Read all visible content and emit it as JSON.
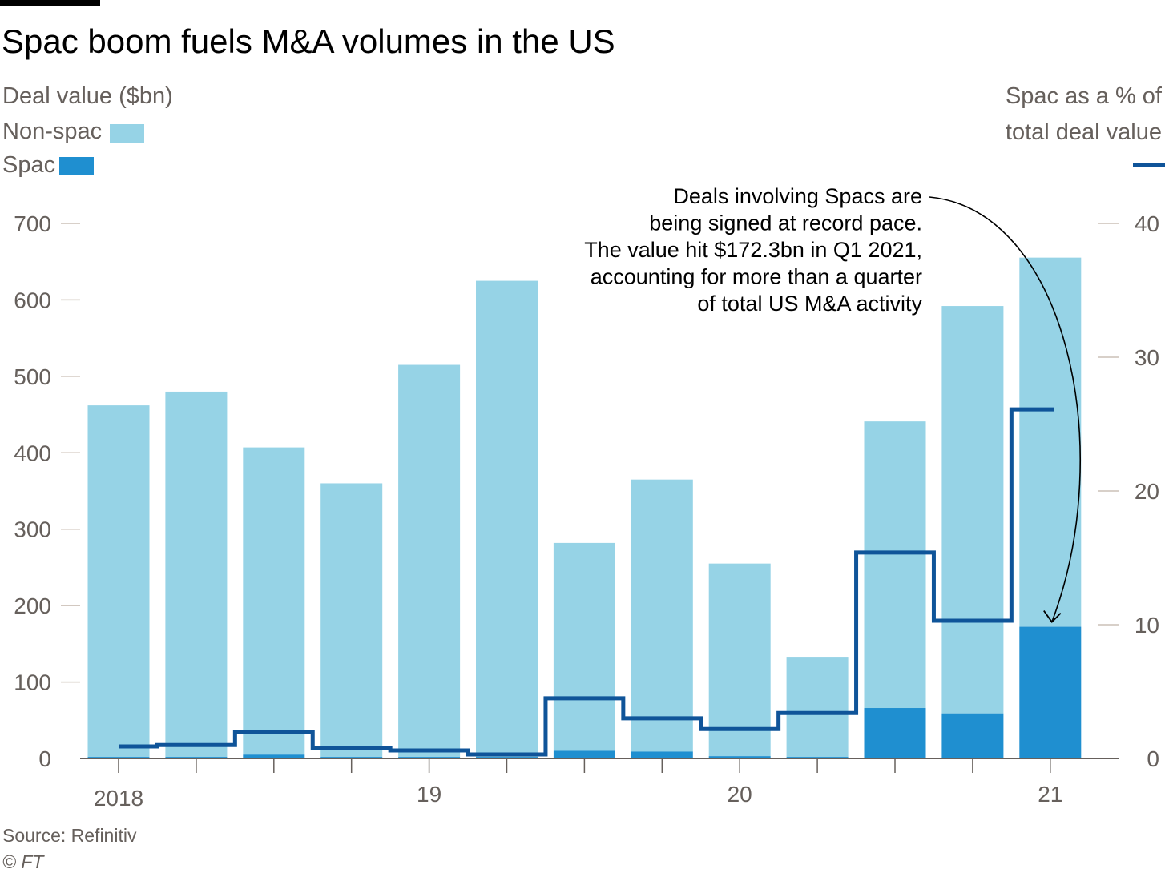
{
  "title": "Spac boom fuels M&A volumes in the US",
  "left_axis_title": "Deal value ($bn)",
  "right_axis_title_line1": "Spac as a % of",
  "right_axis_title_line2": "total deal value",
  "legend": {
    "non_spac": "Non-spac",
    "spac": "Spac",
    "non_spac_color": "#96d3e6",
    "spac_color": "#1f8fd0",
    "line_color": "#0f5499"
  },
  "annotation": [
    "Deals involving Spacs are",
    "being signed at record pace.",
    "The value hit $172.3bn in Q1 2021,",
    "accounting for more than a quarter",
    "of total US M&A activity"
  ],
  "source": "Source: Refinitiv",
  "copyright": "© FT",
  "chart_data": {
    "type": "bar",
    "stacked": true,
    "categories": [
      "Q1 2018",
      "Q2 2018",
      "Q3 2018",
      "Q4 2018",
      "Q1 2019",
      "Q2 2019",
      "Q3 2019",
      "Q4 2019",
      "Q1 2020",
      "Q2 2020",
      "Q3 2020",
      "Q4 2020",
      "Q1 2021"
    ],
    "x_tick_labels": [
      {
        "index": 0,
        "label": "2018"
      },
      {
        "index": 4,
        "label": "19"
      },
      {
        "index": 8,
        "label": "20"
      },
      {
        "index": 12,
        "label": "21"
      }
    ],
    "series": [
      {
        "name": "Non-spac",
        "axis": "left",
        "values": [
          460,
          478,
          402,
          358,
          513,
          623,
          272,
          356,
          252,
          131,
          375,
          533,
          483
        ]
      },
      {
        "name": "Spac",
        "axis": "left",
        "values": [
          2,
          2,
          5,
          2,
          2,
          2,
          10,
          9,
          3,
          2,
          66,
          59,
          172.3
        ]
      },
      {
        "name": "Spac as a % of total deal value",
        "axis": "right",
        "type": "step-line",
        "values": [
          0.9,
          1.0,
          2.0,
          0.8,
          0.6,
          0.3,
          4.5,
          3.0,
          2.2,
          3.4,
          15.4,
          10.3,
          26.1
        ]
      }
    ],
    "left_axis": {
      "min": 0,
      "max": 700,
      "ticks": [
        0,
        100,
        200,
        300,
        400,
        500,
        600,
        700
      ]
    },
    "right_axis": {
      "min": 0,
      "max": 40,
      "ticks": [
        0,
        10,
        20,
        30,
        40
      ]
    }
  }
}
